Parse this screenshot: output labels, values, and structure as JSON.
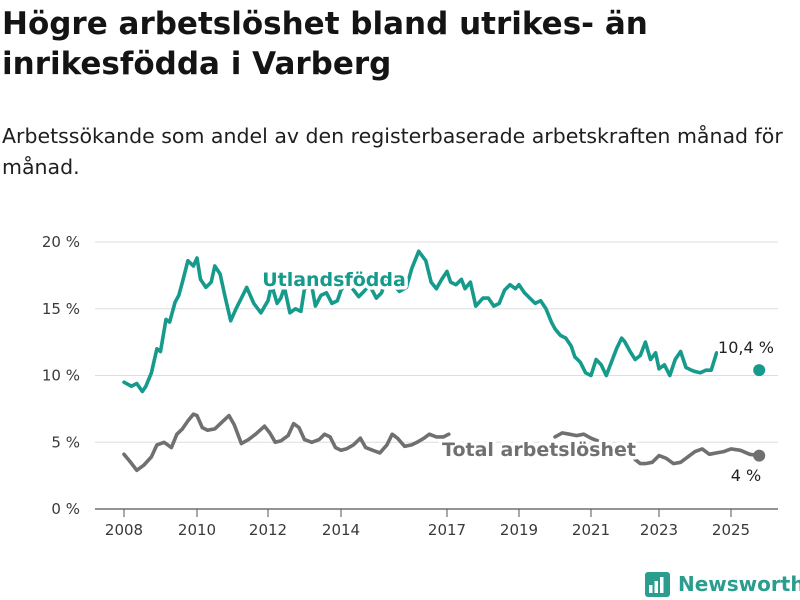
{
  "title": "Högre arbetslöshet bland utrikes- än inrikesfödda i Varberg",
  "subtitle": "Arbetssökande som andel av den registerbaserade arbetskraften månad för månad.",
  "brand": {
    "name": "Newsworthy",
    "icon": "bar-chart-logo-icon"
  },
  "colors": {
    "foreign": "#159a8c",
    "total": "#707070",
    "axis": "#555555",
    "grid": "#dddddd",
    "brand": "#2a9d8f"
  },
  "chart_data": {
    "type": "line",
    "title": "Högre arbetslöshet bland utrikes- än inrikesfödda i Varberg",
    "subtitle": "Arbetssökande som andel av den registerbaserade arbetskraften månad för månad.",
    "xlabel": "",
    "ylabel": "",
    "xlim": [
      2007.5,
      2026.0
    ],
    "ylim": [
      0,
      20
    ],
    "grid": true,
    "legend": "none",
    "x_ticks": [
      {
        "value": 2008,
        "label": "2008"
      },
      {
        "value": 2010,
        "label": "2010"
      },
      {
        "value": 2012,
        "label": "2012"
      },
      {
        "value": 2014,
        "label": "2014"
      },
      {
        "value": 2017,
        "label": "2017"
      },
      {
        "value": 2019,
        "label": "2019"
      },
      {
        "value": 2021,
        "label": "2021"
      },
      {
        "value": 2023,
        "label": "2023"
      },
      {
        "value": 2025,
        "label": "2025"
      }
    ],
    "y_ticks": [
      {
        "value": 0,
        "label": "0 %"
      },
      {
        "value": 5,
        "label": "5 %"
      },
      {
        "value": 10,
        "label": "10 %"
      },
      {
        "value": 15,
        "label": "15 %"
      },
      {
        "value": 20,
        "label": "20 %"
      }
    ],
    "series": [
      {
        "name": "Utlandsfödda",
        "color": "#159a8c",
        "end_label": "10,4 %",
        "end_value": 10.4,
        "end_x": 2025.6,
        "x": [
          2008.0,
          2008.2,
          2008.35,
          2008.5,
          2008.6,
          2008.75,
          2008.9,
          2009.0,
          2009.15,
          2009.25,
          2009.4,
          2009.5,
          2009.6,
          2009.75,
          2009.9,
          2010.0,
          2010.1,
          2010.25,
          2010.4,
          2010.5,
          2010.65,
          2010.8,
          2010.95,
          2011.1,
          2011.25,
          2011.4,
          2011.6,
          2011.8,
          2012.0,
          2012.1,
          2012.25,
          2012.35,
          2012.45,
          2012.6,
          2012.75,
          2012.9,
          2013.0,
          2013.2,
          2013.3,
          2013.45,
          2013.6,
          2013.75,
          2013.9,
          2014.0,
          2014.15,
          2014.3,
          2014.5,
          2014.65,
          2014.8,
          2015.0,
          2015.15,
          2015.3,
          2015.5,
          2015.65,
          2015.85,
          2016.0,
          2016.2,
          2016.4,
          2016.55,
          2016.7,
          2016.85,
          2017.0,
          2017.1,
          2017.25,
          2017.4,
          2017.5,
          2017.65,
          2017.8,
          2018.0,
          2018.15,
          2018.3,
          2018.45,
          2018.6,
          2018.75,
          2018.9,
          2019.0,
          2019.15,
          2019.3,
          2019.45,
          2019.6,
          2019.75,
          2019.9,
          2020.0,
          2020.15,
          2020.3,
          2020.45,
          2020.55,
          2020.7,
          2020.85,
          2021.0,
          2021.15,
          2021.3,
          2021.45,
          2021.6,
          2021.75,
          2021.9,
          2022.0,
          2022.15,
          2022.3,
          2022.45,
          2022.6,
          2022.75,
          2022.9,
          2023.0,
          2023.15,
          2023.3,
          2023.45,
          2023.6,
          2023.75,
          2023.9,
          2024.0,
          2024.15,
          2024.3,
          2024.45,
          2024.6
        ],
        "values": [
          9.5,
          9.2,
          9.4,
          8.8,
          9.2,
          10.2,
          12.0,
          11.8,
          14.2,
          14.0,
          15.5,
          16.0,
          17.0,
          18.6,
          18.2,
          18.8,
          17.2,
          16.6,
          17.0,
          18.2,
          17.6,
          15.8,
          14.1,
          15.0,
          15.8,
          16.6,
          15.4,
          14.7,
          15.6,
          16.8,
          15.4,
          15.8,
          16.6,
          14.7,
          15.0,
          14.8,
          16.5,
          16.7,
          15.2,
          16.0,
          16.2,
          15.4,
          15.6,
          16.4,
          17.0,
          16.6,
          15.9,
          16.3,
          16.8,
          15.8,
          16.2,
          17.4,
          16.8,
          16.3,
          16.6,
          18.0,
          19.3,
          18.6,
          17.0,
          16.5,
          17.2,
          17.8,
          17.0,
          16.8,
          17.2,
          16.5,
          17.0,
          15.2,
          15.8,
          15.8,
          15.2,
          15.4,
          16.4,
          16.8,
          16.5,
          16.8,
          16.2,
          15.8,
          15.4,
          15.6,
          15.0,
          14.0,
          13.5,
          13.0,
          12.8,
          12.2,
          11.4,
          11.0,
          10.2,
          10.0,
          11.2,
          10.8,
          10.0,
          11.0,
          12.0,
          12.8,
          12.5,
          11.8,
          11.2,
          11.5,
          12.5,
          11.2,
          11.7,
          10.5,
          10.8,
          10.0,
          11.2,
          11.8,
          10.6,
          10.4,
          10.3,
          10.2,
          10.4,
          10.4,
          11.7
        ],
        "values_note": "",
        "gap_segments": []
      },
      {
        "name": "Total arbetslöshet",
        "color": "#707070",
        "end_label": "4 %",
        "end_value": 4.0,
        "end_x": 2025.6,
        "x": [
          2008.0,
          2008.15,
          2008.35,
          2008.55,
          2008.75,
          2008.9,
          2009.1,
          2009.3,
          2009.45,
          2009.6,
          2009.75,
          2009.9,
          2010.0,
          2010.15,
          2010.3,
          2010.5,
          2010.7,
          2010.9,
          2011.05,
          2011.25,
          2011.45,
          2011.65,
          2011.9,
          2012.05,
          2012.2,
          2012.35,
          2012.55,
          2012.7,
          2012.85,
          2013.0,
          2013.2,
          2013.4,
          2013.55,
          2013.7,
          2013.85,
          2014.0,
          2014.15,
          2014.35,
          2014.55,
          2014.7,
          2014.9,
          2015.1,
          2015.3,
          2015.45,
          2015.6,
          2015.8,
          2016.0,
          2016.15,
          2016.35,
          2016.5,
          2016.7,
          2016.9,
          2017.05
        ],
        "values": [
          4.1,
          3.6,
          2.9,
          3.3,
          3.9,
          4.8,
          5.0,
          4.6,
          5.6,
          6.0,
          6.6,
          7.1,
          7.0,
          6.1,
          5.9,
          6.0,
          6.5,
          7.0,
          6.3,
          4.9,
          5.2,
          5.6,
          6.2,
          5.7,
          5.0,
          5.1,
          5.5,
          6.4,
          6.1,
          5.2,
          5.0,
          5.2,
          5.6,
          5.4,
          4.6,
          4.4,
          4.5,
          4.8,
          5.3,
          4.6,
          4.4,
          4.2,
          4.8,
          5.6,
          5.3,
          4.7,
          4.8,
          5.0,
          5.3,
          5.6,
          5.4,
          5.4,
          5.6
        ],
        "x2": [
          2020.0,
          2020.2,
          2020.4,
          2020.6,
          2020.8,
          2021.0,
          2021.2
        ],
        "values2": [
          5.4,
          5.7,
          5.6,
          5.5,
          5.6,
          5.3,
          5.1
        ],
        "x3": [
          2022.3,
          2022.45,
          2022.6,
          2022.8,
          2023.0,
          2023.2,
          2023.4,
          2023.6,
          2023.8,
          2024.0,
          2024.2,
          2024.4,
          2024.6,
          2024.8,
          2025.0,
          2025.2,
          2025.4,
          2025.6
        ],
        "values3": [
          3.7,
          3.4,
          3.4,
          3.5,
          4.0,
          3.8,
          3.4,
          3.5,
          3.9,
          4.3,
          4.5,
          4.1,
          4.2,
          4.3,
          4.5,
          4.4,
          4.1,
          4.0
        ]
      }
    ]
  }
}
